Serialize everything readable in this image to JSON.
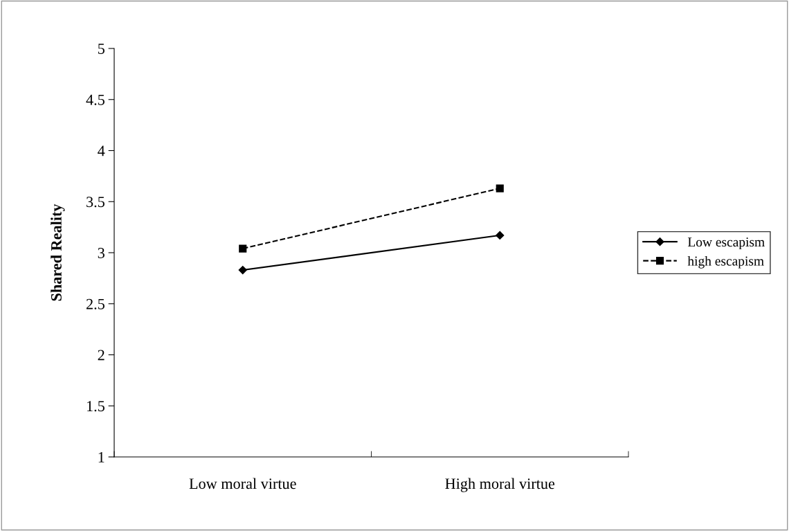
{
  "chart_data": {
    "type": "line",
    "ylabel": "Shared Reality",
    "categories": [
      "Low moral virtue",
      "High moral virtue"
    ],
    "series": [
      {
        "name": "Low escapism",
        "color": "#000000",
        "values": [
          2.83,
          3.17
        ],
        "marker": "diamond",
        "line_style": "solid"
      },
      {
        "name": "high escapism",
        "color": "#000000",
        "values": [
          3.04,
          3.63
        ],
        "marker": "square",
        "line_style": "dashed"
      }
    ],
    "ylim": [
      1,
      5
    ],
    "yticks": [
      1,
      1.5,
      2,
      2.5,
      3,
      3.5,
      4,
      4.5,
      5
    ],
    "grid": false,
    "legend": "right"
  }
}
